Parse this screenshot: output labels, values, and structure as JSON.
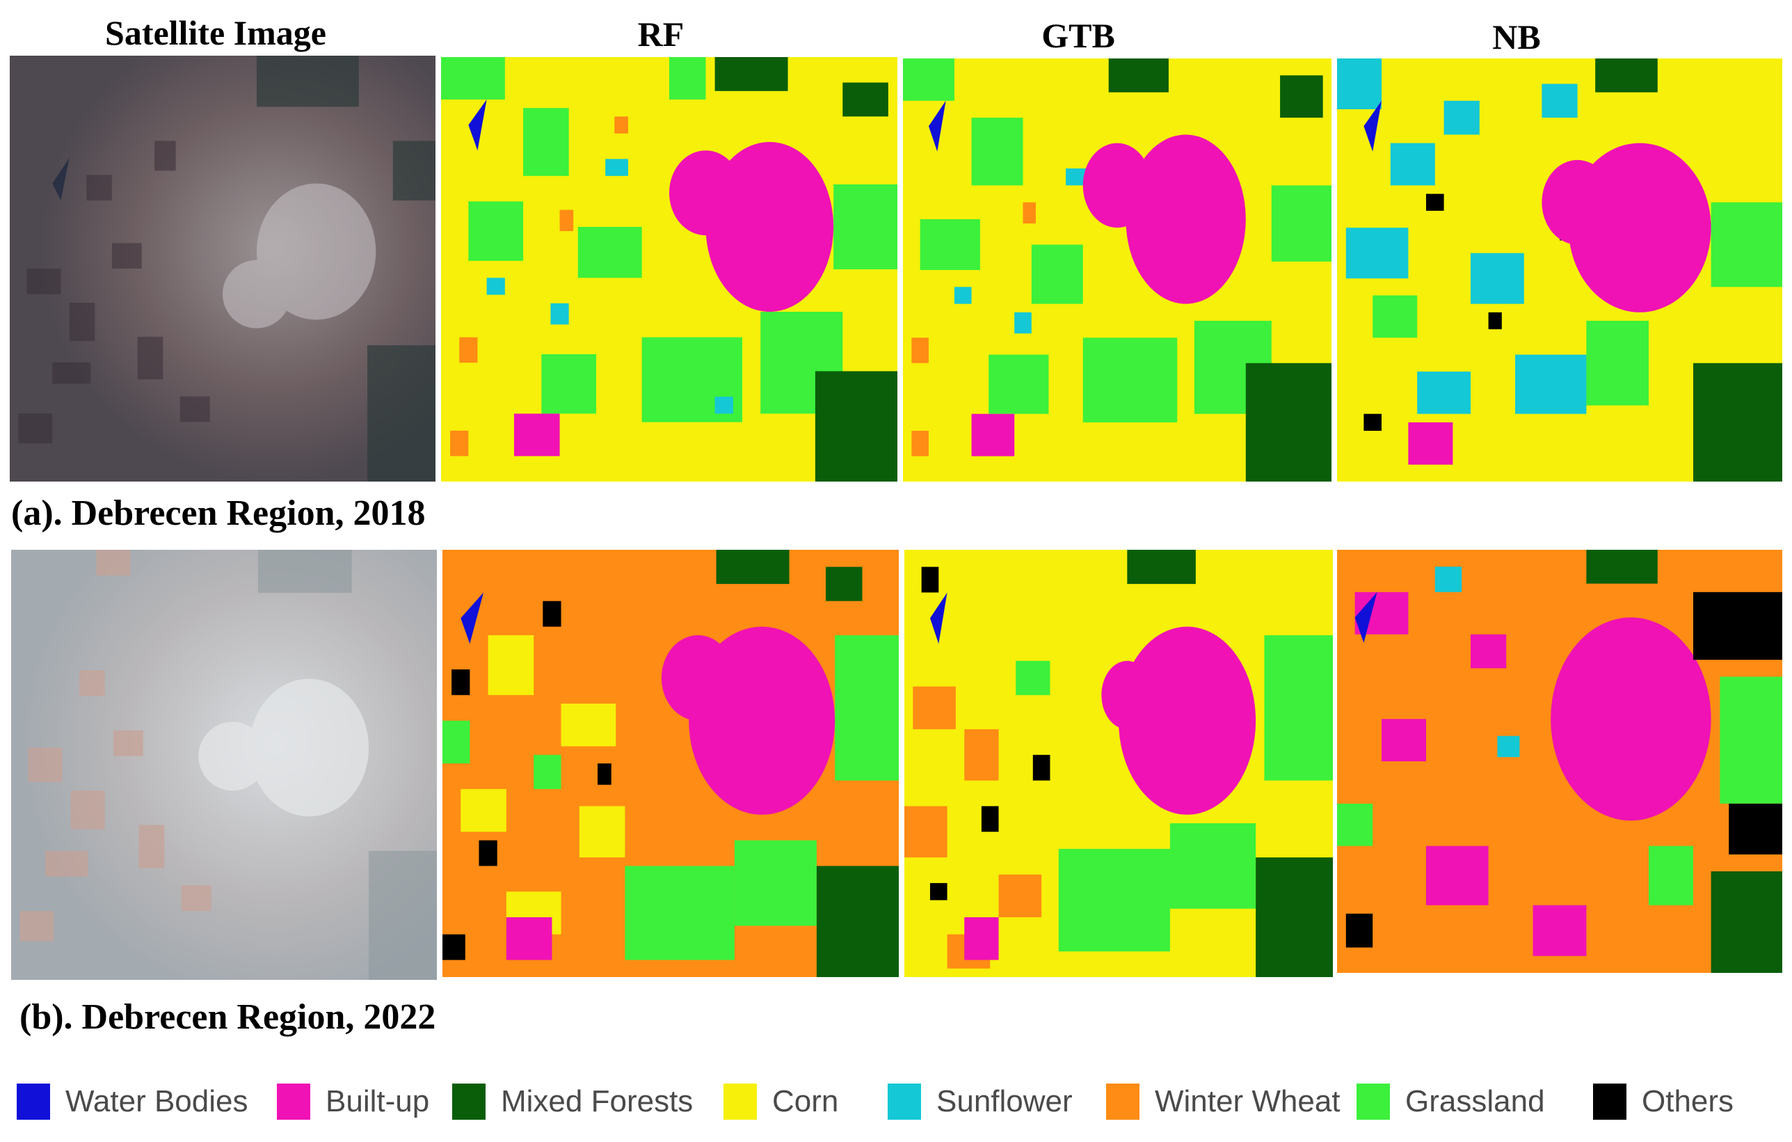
{
  "headers": {
    "satellite": "Satellite Image",
    "rf": "RF",
    "gtb": "GTB",
    "nb": "NB"
  },
  "captions": {
    "row_a": "(a). Debrecen Region, 2018",
    "row_b": "(b). Debrecen Region, 2022"
  },
  "legend": [
    {
      "label": "Water Bodies",
      "color": "#1010d8"
    },
    {
      "label": "Built-up",
      "color": "#f012b4"
    },
    {
      "label": "Mixed Forests",
      "color": "#0a5e0a"
    },
    {
      "label": "Corn",
      "color": "#f6f00a"
    },
    {
      "label": "Sunflower",
      "color": "#14c8d6"
    },
    {
      "label": "Winter Wheat",
      "color": "#ff8c14"
    },
    {
      "label": "Grassland",
      "color": "#3cf03c"
    },
    {
      "label": "Others",
      "color": "#000000"
    }
  ]
}
